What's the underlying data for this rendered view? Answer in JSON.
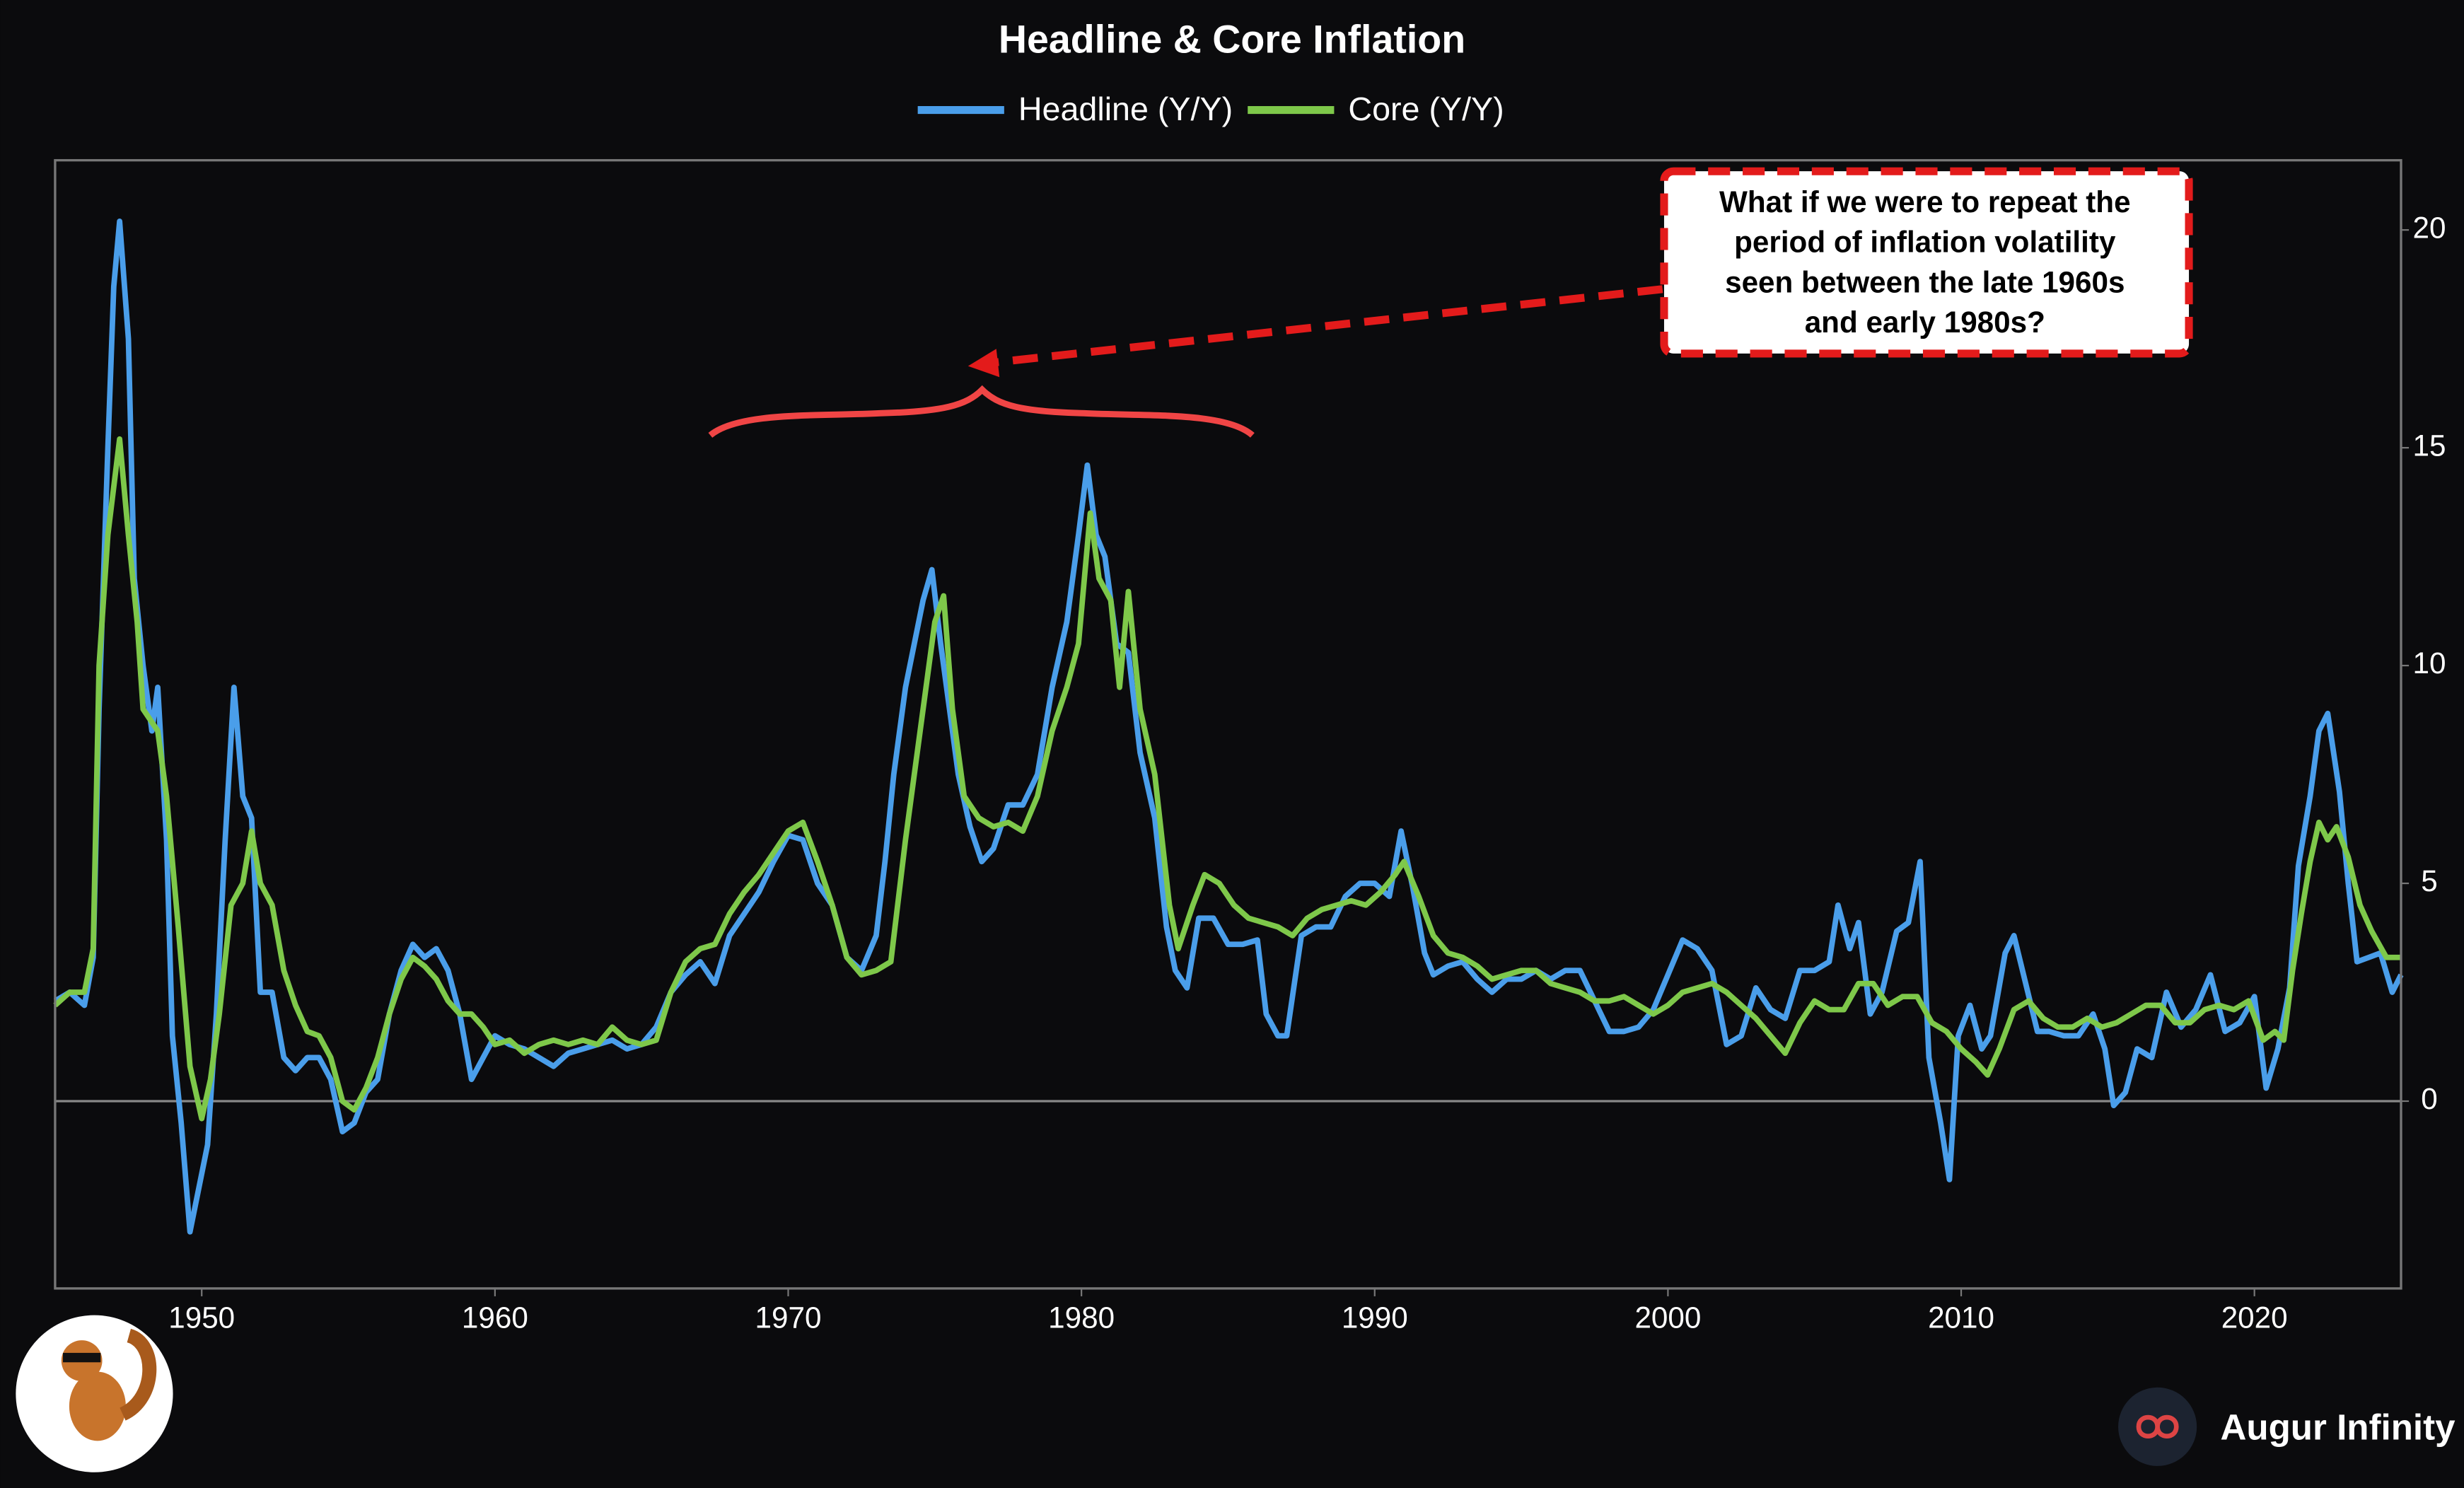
{
  "chart_data": {
    "type": "line",
    "title": "Headline & Core Inflation",
    "xlim": [
      1945,
      2025
    ],
    "xticks": [
      1950,
      1960,
      1970,
      1980,
      1990,
      2000,
      2010,
      2020
    ],
    "ylim": [
      -4.3,
      21.6
    ],
    "yticks": [
      0,
      5,
      10,
      15,
      20
    ],
    "legend": "top",
    "zero_line": true,
    "annotation": [
      "What if we were to repeat the",
      "period of inflation volatility",
      "seen between the late 1960s",
      "and early 1980s?"
    ],
    "brand": "Augur Infinity",
    "series": [
      {
        "name": "Headline (Y/Y)",
        "color": "#4a9eea",
        "x": [
          1945.0,
          1945.5,
          1946.0,
          1946.3,
          1946.5,
          1946.8,
          1947.0,
          1947.2,
          1947.5,
          1947.7,
          1948.0,
          1948.3,
          1948.5,
          1948.8,
          1949.0,
          1949.3,
          1949.6,
          1949.9,
          1950.2,
          1950.5,
          1950.8,
          1951.1,
          1951.4,
          1951.7,
          1952.0,
          1952.4,
          1952.8,
          1953.2,
          1953.6,
          1954.0,
          1954.4,
          1954.8,
          1955.2,
          1955.6,
          1956.0,
          1956.4,
          1956.8,
          1957.2,
          1957.6,
          1958.0,
          1958.4,
          1958.8,
          1959.2,
          1959.6,
          1960.0,
          1960.5,
          1961.0,
          1961.5,
          1962.0,
          1962.5,
          1963.0,
          1963.5,
          1964.0,
          1964.5,
          1965.0,
          1965.5,
          1966.0,
          1966.5,
          1967.0,
          1967.5,
          1968.0,
          1968.5,
          1969.0,
          1969.5,
          1970.0,
          1970.5,
          1971.0,
          1971.5,
          1972.0,
          1972.5,
          1973.0,
          1973.3,
          1973.6,
          1974.0,
          1974.3,
          1974.6,
          1974.9,
          1975.2,
          1975.5,
          1975.8,
          1976.2,
          1976.6,
          1977.0,
          1977.5,
          1978.0,
          1978.5,
          1979.0,
          1979.5,
          1979.9,
          1980.2,
          1980.5,
          1980.8,
          1981.2,
          1981.6,
          1982.0,
          1982.5,
          1982.9,
          1983.2,
          1983.6,
          1984.0,
          1984.5,
          1985.0,
          1985.5,
          1986.0,
          1986.3,
          1986.7,
          1987.0,
          1987.5,
          1988.0,
          1988.5,
          1989.0,
          1989.5,
          1990.0,
          1990.5,
          1990.9,
          1991.3,
          1991.7,
          1992.0,
          1992.5,
          1993.0,
          1993.5,
          1994.0,
          1994.5,
          1995.0,
          1995.5,
          1996.0,
          1996.5,
          1997.0,
          1997.5,
          1998.0,
          1998.5,
          1999.0,
          1999.5,
          2000.0,
          2000.5,
          2001.0,
          2001.5,
          2002.0,
          2002.5,
          2003.0,
          2003.5,
          2004.0,
          2004.5,
          2005.0,
          2005.5,
          2005.8,
          2006.2,
          2006.5,
          2006.9,
          2007.3,
          2007.8,
          2008.2,
          2008.6,
          2008.9,
          2009.3,
          2009.6,
          2009.9,
          2010.3,
          2010.7,
          2011.0,
          2011.5,
          2011.8,
          2012.2,
          2012.6,
          2013.0,
          2013.5,
          2014.0,
          2014.5,
          2014.9,
          2015.2,
          2015.6,
          2016.0,
          2016.5,
          2017.0,
          2017.5,
          2018.0,
          2018.5,
          2019.0,
          2019.5,
          2020.0,
          2020.4,
          2020.8,
          2021.2,
          2021.5,
          2021.9,
          2022.2,
          2022.5,
          2022.9,
          2023.2,
          2023.5,
          2023.9,
          2024.3,
          2024.7,
          2025.0
        ],
        "values": [
          2.3,
          2.5,
          2.2,
          3.3,
          9,
          15,
          18.7,
          20.2,
          17.5,
          12,
          10,
          8.5,
          9.5,
          6,
          1.5,
          -0.5,
          -3,
          -2,
          -1,
          2,
          6,
          9.5,
          7,
          6.5,
          2.5,
          2.5,
          1,
          0.7,
          1,
          1,
          0.5,
          -0.7,
          -0.5,
          0.2,
          0.5,
          2,
          3,
          3.6,
          3.3,
          3.5,
          3,
          2,
          0.5,
          1,
          1.5,
          1.3,
          1.2,
          1,
          0.8,
          1.1,
          1.2,
          1.3,
          1.4,
          1.2,
          1.3,
          1.7,
          2.5,
          2.9,
          3.2,
          2.7,
          3.8,
          4.3,
          4.8,
          5.5,
          6.1,
          6.0,
          5.0,
          4.5,
          3.3,
          3.0,
          3.8,
          5.5,
          7.5,
          9.5,
          10.5,
          11.5,
          12.2,
          10.5,
          9,
          7.5,
          6.3,
          5.5,
          5.8,
          6.8,
          6.8,
          7.5,
          9.5,
          11,
          13,
          14.6,
          13,
          12.5,
          10.5,
          10.3,
          8,
          6.5,
          4,
          3,
          2.6,
          4.2,
          4.2,
          3.6,
          3.6,
          3.7,
          2,
          1.5,
          1.5,
          3.8,
          4,
          4,
          4.7,
          5,
          5,
          4.7,
          6.2,
          4.9,
          3.4,
          2.9,
          3.1,
          3.2,
          2.8,
          2.5,
          2.8,
          2.8,
          3,
          2.8,
          3,
          3,
          2.3,
          1.6,
          1.6,
          1.7,
          2.1,
          2.9,
          3.7,
          3.5,
          3.0,
          1.3,
          1.5,
          2.6,
          2.1,
          1.9,
          3.0,
          3.0,
          3.2,
          4.5,
          3.5,
          4.1,
          2,
          2.5,
          3.9,
          4.1,
          5.5,
          1,
          -0.5,
          -1.8,
          1.5,
          2.2,
          1.2,
          1.5,
          3.4,
          3.8,
          2.7,
          1.6,
          1.6,
          1.5,
          1.5,
          2,
          1.2,
          -0.1,
          0.2,
          1.2,
          1,
          2.5,
          1.7,
          2.1,
          2.9,
          1.6,
          1.8,
          2.4,
          0.3,
          1.2,
          2.6,
          5.4,
          7,
          8.5,
          8.9,
          7.1,
          5,
          3.2,
          3.3,
          3.4,
          2.5,
          2.9
        ]
      },
      {
        "name": "Core (Y/Y)",
        "color": "#7ec84a",
        "x": [
          1945.0,
          1945.5,
          1946.0,
          1946.3,
          1946.5,
          1946.8,
          1947.2,
          1947.5,
          1947.8,
          1948.0,
          1948.5,
          1948.8,
          1949.2,
          1949.6,
          1950.0,
          1950.3,
          1950.6,
          1951.0,
          1951.4,
          1951.7,
          1952.0,
          1952.4,
          1952.8,
          1953.2,
          1953.6,
          1954.0,
          1954.4,
          1954.8,
          1955.2,
          1955.6,
          1956.0,
          1956.4,
          1956.8,
          1957.2,
          1957.6,
          1958.0,
          1958.4,
          1958.8,
          1959.2,
          1959.6,
          1960.0,
          1960.5,
          1961.0,
          1961.5,
          1962.0,
          1962.5,
          1963.0,
          1963.5,
          1964.0,
          1964.5,
          1965.0,
          1965.5,
          1966.0,
          1966.5,
          1967.0,
          1967.5,
          1968.0,
          1968.5,
          1969.0,
          1969.5,
          1970.0,
          1970.5,
          1971.0,
          1971.5,
          1972.0,
          1972.5,
          1973.0,
          1973.5,
          1974.0,
          1974.5,
          1975.0,
          1975.3,
          1975.6,
          1976.0,
          1976.5,
          1977.0,
          1977.5,
          1978.0,
          1978.5,
          1979.0,
          1979.5,
          1979.9,
          1980.3,
          1980.6,
          1981.0,
          1981.3,
          1981.6,
          1982.0,
          1982.5,
          1983.0,
          1983.3,
          1983.8,
          1984.2,
          1984.7,
          1985.2,
          1985.7,
          1986.2,
          1986.7,
          1987.2,
          1987.7,
          1988.2,
          1988.7,
          1989.2,
          1989.7,
          1990.2,
          1990.7,
          1991.0,
          1991.5,
          1992.0,
          1992.5,
          1993.0,
          1993.5,
          1994.0,
          1994.5,
          1995.0,
          1995.5,
          1996.0,
          1996.5,
          1997.0,
          1997.5,
          1998.0,
          1998.5,
          1999.0,
          1999.5,
          2000.0,
          2000.5,
          2001.0,
          2001.5,
          2002.0,
          2002.5,
          2003.0,
          2003.5,
          2004.0,
          2004.5,
          2005.0,
          2005.5,
          2006.0,
          2006.5,
          2007.0,
          2007.5,
          2008.0,
          2008.5,
          2009.0,
          2009.5,
          2010.0,
          2010.5,
          2010.9,
          2011.3,
          2011.8,
          2012.3,
          2012.8,
          2013.3,
          2013.8,
          2014.3,
          2014.8,
          2015.3,
          2015.8,
          2016.3,
          2016.8,
          2017.3,
          2017.8,
          2018.3,
          2018.8,
          2019.3,
          2019.8,
          2020.3,
          2020.7,
          2021.0,
          2021.3,
          2021.6,
          2021.9,
          2022.2,
          2022.5,
          2022.8,
          2023.2,
          2023.6,
          2024.0,
          2024.5,
          2025.0
        ],
        "values": [
          2.2,
          2.5,
          2.5,
          3.5,
          10,
          13,
          15.2,
          13,
          11,
          9,
          8.5,
          7,
          4,
          0.8,
          -0.4,
          0.5,
          2,
          4.5,
          5,
          6.2,
          5,
          4.5,
          3,
          2.2,
          1.6,
          1.5,
          1,
          0,
          -0.2,
          0.3,
          1,
          2,
          2.8,
          3.3,
          3.1,
          2.8,
          2.3,
          2,
          2,
          1.7,
          1.3,
          1.4,
          1.1,
          1.3,
          1.4,
          1.3,
          1.4,
          1.3,
          1.7,
          1.4,
          1.3,
          1.4,
          2.5,
          3.2,
          3.5,
          3.6,
          4.3,
          4.8,
          5.2,
          5.7,
          6.2,
          6.4,
          5.5,
          4.5,
          3.3,
          2.9,
          3.0,
          3.2,
          6,
          8.5,
          11,
          11.6,
          9,
          7,
          6.5,
          6.3,
          6.4,
          6.2,
          7,
          8.5,
          9.5,
          10.5,
          13.5,
          12,
          11.5,
          9.5,
          11.7,
          9,
          7.5,
          4.5,
          3.5,
          4.5,
          5.2,
          5,
          4.5,
          4.2,
          4.1,
          4.0,
          3.8,
          4.2,
          4.4,
          4.5,
          4.6,
          4.5,
          4.8,
          5.2,
          5.5,
          4.7,
          3.8,
          3.4,
          3.3,
          3.1,
          2.8,
          2.9,
          3.0,
          3.0,
          2.7,
          2.6,
          2.5,
          2.3,
          2.3,
          2.4,
          2.2,
          2.0,
          2.2,
          2.5,
          2.6,
          2.7,
          2.5,
          2.2,
          1.9,
          1.5,
          1.1,
          1.8,
          2.3,
          2.1,
          2.1,
          2.7,
          2.7,
          2.2,
          2.4,
          2.4,
          1.8,
          1.6,
          1.2,
          0.9,
          0.6,
          1.2,
          2.1,
          2.3,
          1.9,
          1.7,
          1.7,
          1.9,
          1.7,
          1.8,
          2.0,
          2.2,
          2.2,
          1.8,
          1.8,
          2.1,
          2.2,
          2.1,
          2.3,
          1.4,
          1.6,
          1.4,
          3.0,
          4.3,
          5.5,
          6.4,
          6.0,
          6.3,
          5.6,
          4.5,
          3.9,
          3.3,
          3.3
        ]
      }
    ]
  }
}
